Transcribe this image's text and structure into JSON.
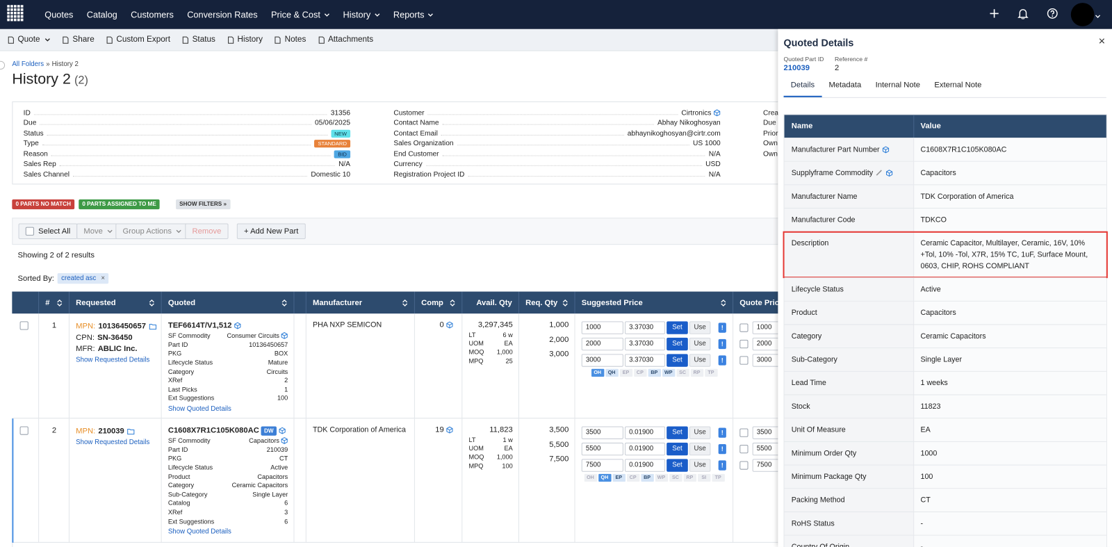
{
  "nav": {
    "items": [
      {
        "label": "Quotes"
      },
      {
        "label": "Catalog"
      },
      {
        "label": "Customers"
      },
      {
        "label": "Conversion Rates"
      },
      {
        "label": "Price & Cost",
        "dropdown": true
      },
      {
        "label": "History",
        "dropdown": true
      },
      {
        "label": "Reports",
        "dropdown": true
      }
    ]
  },
  "toolbar": {
    "items": [
      {
        "label": "Quote",
        "dropdown": true
      },
      {
        "label": "Share"
      },
      {
        "label": "Custom Export"
      },
      {
        "label": "Status"
      },
      {
        "label": "History"
      },
      {
        "label": "Notes"
      },
      {
        "label": "Attachments"
      }
    ]
  },
  "breadcrumb": {
    "items": [
      "All Folders",
      "History 2"
    ],
    "separator": "»"
  },
  "header": {
    "title": "History 2",
    "count": "(2)"
  },
  "summary": {
    "columns": [
      [
        {
          "label": "ID",
          "value": "31356"
        },
        {
          "label": "Due",
          "value": "05/06/2025"
        },
        {
          "label": "Status",
          "value": "NEW",
          "badge": "#5fe0ea",
          "badge_text": "#0d3b4a"
        },
        {
          "label": "Type",
          "value": "STANDARD",
          "badge": "#e8823a",
          "badge_text": "#ffffff"
        },
        {
          "label": "Reason",
          "value": "BID",
          "badge": "#4ea6e2",
          "badge_text": "#0d2b4a"
        },
        {
          "label": "Sales Rep",
          "value": "N/A"
        },
        {
          "label": "Sales Channel",
          "value": "Domestic 10"
        }
      ],
      [
        {
          "label": "Customer",
          "value": "Cirtronics",
          "icon": "cube"
        },
        {
          "label": "Contact Name",
          "value": "Abhay Nikoghosyan"
        },
        {
          "label": "Contact Email",
          "value": "abhaynikoghosyan@cirtr.com"
        },
        {
          "label": "Sales Organization",
          "value": "US 1000"
        },
        {
          "label": "End Customer",
          "value": "N/A"
        },
        {
          "label": "Currency",
          "value": "USD"
        },
        {
          "label": "Registration Project ID",
          "value": "N/A"
        }
      ],
      [
        {
          "label": "Crea"
        },
        {
          "label": "Due"
        },
        {
          "label": "Prior"
        },
        {
          "label": "Own"
        },
        {
          "label": "Own"
        }
      ]
    ]
  },
  "filters": [
    {
      "label": "0 PARTS NO MATCH",
      "color": "#c8413b",
      "text": "#ffffff"
    },
    {
      "label": "0 PARTS ASSIGNED TO ME",
      "color": "#3e9a46",
      "text": "#ffffff"
    },
    {
      "label": "SHOW FILTERS »",
      "color": "#dfe3e8",
      "text": "#333333"
    }
  ],
  "actions": {
    "select_all": "Select All",
    "move": "Move",
    "group_actions": "Group Actions",
    "remove": "Remove",
    "add": "+ Add New Part"
  },
  "results": "Showing 2 of 2 results",
  "sort": {
    "label": "Sorted By:",
    "value": "created asc",
    "remove": "×"
  },
  "table": {
    "columns": [
      "#",
      "Requested",
      "Quoted",
      "Manufacturer",
      "Comp",
      "Avail. Qty",
      "Req. Qty",
      "Suggested Price",
      "Quote Price"
    ],
    "price_buttons": {
      "set": "Set",
      "use": "Use",
      "alert": "!"
    },
    "rows": [
      {
        "num": "1",
        "requested": [
          {
            "label": "MPN:",
            "value": "10136450657",
            "icon": "folder"
          },
          {
            "label": "CPN:",
            "value": "SN-36450"
          },
          {
            "label": "MFR:",
            "value": "ABLIC Inc."
          }
        ],
        "requested_link": "Show Requested Details",
        "quoted": {
          "part": "TEF6614T/V1,512",
          "details": [
            {
              "label": "SF Commodity",
              "value": "Consumer Circuits",
              "icon": "cube"
            },
            {
              "label": "Part ID",
              "value": "10136450657"
            },
            {
              "label": "PKG",
              "value": "BOX"
            },
            {
              "label": "Lifecycle Status",
              "value": "Mature"
            },
            {
              "label": "Category",
              "value": "Circuits"
            },
            {
              "label": "XRef",
              "value": "2"
            },
            {
              "label": "Last Picks",
              "value": "1"
            },
            {
              "label": "Ext Suggestions",
              "value": "100"
            }
          ],
          "link": "Show Quoted Details"
        },
        "manufacturer": "PHA NXP SEMICON",
        "comp": "0",
        "avail": {
          "total": "3,297,345",
          "details": [
            {
              "label": "LT",
              "value": "6 w"
            },
            {
              "label": "UOM",
              "value": "EA"
            },
            {
              "label": "MOQ",
              "value": "1,000"
            },
            {
              "label": "MPQ",
              "value": "25"
            }
          ]
        },
        "req_qty": [
          "1,000",
          "2,000",
          "3,000"
        ],
        "prices": [
          {
            "qty": "1000",
            "price": "3.37030"
          },
          {
            "qty": "2000",
            "price": "3.37030"
          },
          {
            "qty": "3000",
            "price": "3.37030"
          }
        ],
        "tags": [
          {
            "label": "OH",
            "state": "on"
          },
          {
            "label": "QH",
            "state": "some"
          },
          {
            "label": "EP",
            "state": "off"
          },
          {
            "label": "CP",
            "state": "off"
          },
          {
            "label": "BP",
            "state": "some"
          },
          {
            "label": "WP",
            "state": "some"
          },
          {
            "label": "SC",
            "state": "off"
          },
          {
            "label": "RP",
            "state": "off"
          },
          {
            "label": "TP",
            "state": "off"
          }
        ],
        "quote_prices": [
          "1000",
          "2000",
          "3000"
        ]
      },
      {
        "num": "2",
        "selected": true,
        "requested": [
          {
            "label": "MPN:",
            "value": "210039",
            "icon": "folder"
          }
        ],
        "requested_link": "Show Requested Details",
        "quoted": {
          "part": "C1608X7R1C105K080AC",
          "badge": "DW",
          "details": [
            {
              "label": "SF Commodity",
              "value": "Capacitors",
              "icon": "cube"
            },
            {
              "label": "Part ID",
              "value": "210039"
            },
            {
              "label": "PKG",
              "value": "CT"
            },
            {
              "label": "Lifecycle Status",
              "value": "Active"
            },
            {
              "label": "Product",
              "value": "Capacitors"
            },
            {
              "label": "Category",
              "value": "Ceramic Capacitors"
            },
            {
              "label": "Sub-Category",
              "value": "Single Layer"
            },
            {
              "label": "Catalog",
              "value": "6"
            },
            {
              "label": "XRef",
              "value": "3"
            },
            {
              "label": "Ext Suggestions",
              "value": "6"
            }
          ],
          "link": "Show Quoted Details"
        },
        "manufacturer": "TDK Corporation of America",
        "comp": "19",
        "avail": {
          "total": "11,823",
          "details": [
            {
              "label": "LT",
              "value": "1 w"
            },
            {
              "label": "UOM",
              "value": "EA"
            },
            {
              "label": "MOQ",
              "value": "1,000"
            },
            {
              "label": "MPQ",
              "value": "100"
            }
          ]
        },
        "req_qty": [
          "3,500",
          "5,500",
          "7,500"
        ],
        "prices": [
          {
            "qty": "3500",
            "price": "0.01900"
          },
          {
            "qty": "5500",
            "price": "0.01900"
          },
          {
            "qty": "7500",
            "price": "0.01900"
          }
        ],
        "tags": [
          {
            "label": "OH",
            "state": "off"
          },
          {
            "label": "QH",
            "state": "on"
          },
          {
            "label": "EP",
            "state": "some"
          },
          {
            "label": "CP",
            "state": "off"
          },
          {
            "label": "BP",
            "state": "some"
          },
          {
            "label": "WP",
            "state": "off"
          },
          {
            "label": "SC",
            "state": "off"
          },
          {
            "label": "RP",
            "state": "off"
          },
          {
            "label": "SI",
            "state": "off"
          },
          {
            "label": "TP",
            "state": "off"
          }
        ],
        "quote_prices": [
          "3500",
          "5500",
          "7500"
        ]
      }
    ]
  },
  "panel": {
    "title": "Quoted Details",
    "close": "×",
    "fields": [
      {
        "label": "Quoted Part ID",
        "value": "210039",
        "link": true
      },
      {
        "label": "Reference #",
        "value": "2"
      }
    ],
    "tabs": [
      {
        "label": "Details",
        "active": true
      },
      {
        "label": "Metadata"
      },
      {
        "label": "Internal Note"
      },
      {
        "label": "External Note"
      }
    ],
    "table": {
      "columns": [
        "Name",
        "Value"
      ],
      "rows": [
        {
          "name": "Manufacturer Part Number",
          "value": "C1608X7R1C105K080AC",
          "icons": [
            "cube"
          ]
        },
        {
          "name": "Supplyframe Commodity",
          "value": "Capacitors",
          "icons": [
            "link",
            "cube"
          ]
        },
        {
          "name": "Manufacturer Name",
          "value": "TDK Corporation of America"
        },
        {
          "name": "Manufacturer Code",
          "value": "TDKCO"
        },
        {
          "name": "Description",
          "value": "Ceramic Capacitor, Multilayer, Ceramic, 16V, 10% +Tol, 10% -Tol, X7R, 15% TC, 1uF, Surface Mount, 0603, CHIP, ROHS COMPLIANT",
          "highlighted": true
        },
        {
          "name": "Lifecycle Status",
          "value": "Active"
        },
        {
          "name": "Product",
          "value": "Capacitors"
        },
        {
          "name": "Category",
          "value": "Ceramic Capacitors"
        },
        {
          "name": "Sub-Category",
          "value": "Single Layer"
        },
        {
          "name": "Lead Time",
          "value": "1 weeks"
        },
        {
          "name": "Stock",
          "value": "11823"
        },
        {
          "name": "Unit Of Measure",
          "value": "EA"
        },
        {
          "name": "Minimum Order Qty",
          "value": "1000"
        },
        {
          "name": "Minimum Package Qty",
          "value": "100"
        },
        {
          "name": "Packing Method",
          "value": "CT"
        },
        {
          "name": "RoHS Status",
          "value": "-"
        },
        {
          "name": "Country Of Origin",
          "value": "-"
        }
      ]
    }
  }
}
